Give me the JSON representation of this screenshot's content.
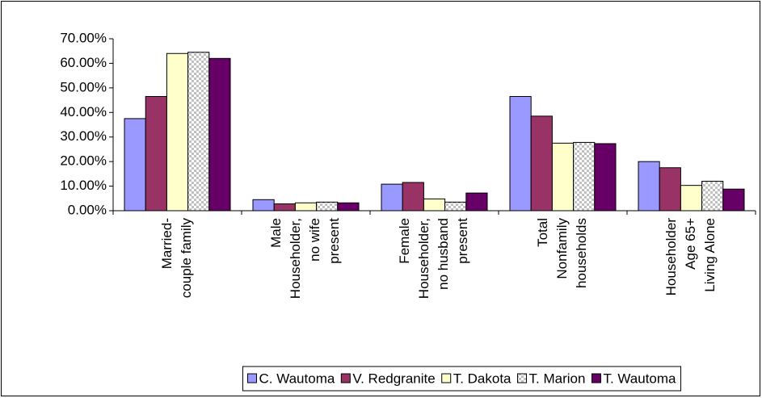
{
  "chart_data": {
    "type": "bar",
    "categories": [
      [
        "Married-",
        "couple family"
      ],
      [
        "Male",
        "Householder,",
        "no wife",
        "present"
      ],
      [
        "Female",
        "Householder,",
        "no husband",
        "present"
      ],
      [
        "Total",
        "Nonfamily",
        "households"
      ],
      [
        "Householder",
        "Age 65+",
        "Living Alone"
      ]
    ],
    "series": [
      {
        "name": "C. Wautoma",
        "color": "#9999ff",
        "values": [
          37.5,
          4.5,
          10.8,
          46.5,
          20
        ]
      },
      {
        "name": "V. Redgranite",
        "color": "#993366",
        "values": [
          46.5,
          2.8,
          11.5,
          38.5,
          17.5
        ]
      },
      {
        "name": "T. Dakota",
        "color": "#ffffcc",
        "values": [
          64,
          3.2,
          4.8,
          27.5,
          10.3
        ]
      },
      {
        "name": "T. Marion",
        "color": "#c0c0c0",
        "pattern": "checker",
        "values": [
          64.5,
          3.5,
          3.5,
          27.8,
          12
        ]
      },
      {
        "name": "T. Wautoma",
        "color": "#660066",
        "values": [
          62,
          3.2,
          7.2,
          27.3,
          8.8
        ]
      }
    ],
    "ylim": [
      0,
      70
    ],
    "yticks": [
      {
        "value": 0,
        "label": "0.00%"
      },
      {
        "value": 10,
        "label": "10.00%"
      },
      {
        "value": 20,
        "label": "20.00%"
      },
      {
        "value": 30,
        "label": "30.00%"
      },
      {
        "value": 40,
        "label": "40.00%"
      },
      {
        "value": 50,
        "label": "50.00%"
      },
      {
        "value": 60,
        "label": "60.00%"
      },
      {
        "value": 70,
        "label": "70.00%"
      }
    ],
    "grid": false,
    "legend": "bottom"
  }
}
